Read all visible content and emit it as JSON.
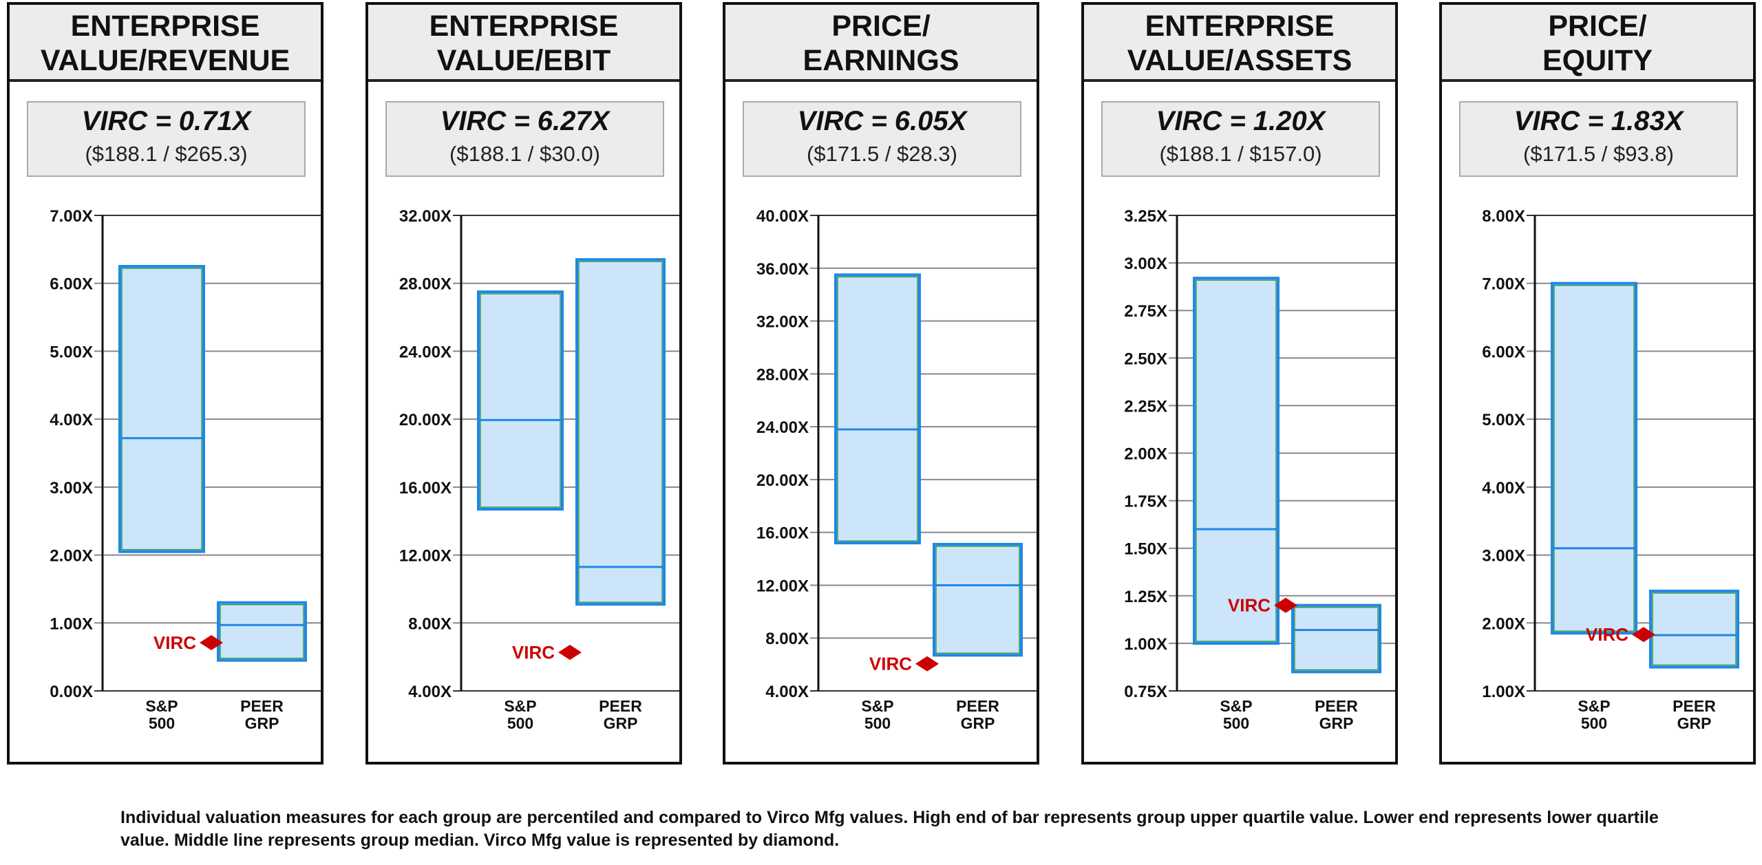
{
  "footnote": "Individual valuation measures for each group are percentiled and compared to Virco Mfg values. High end of bar represents group upper quartile value. Lower end represents lower quartile value. Middle line represents group median. Virco Mfg value is represented by diamond.",
  "colors": {
    "bar_fill": "#cce5fb",
    "bar_border": "#1e88e5",
    "median_line": "#3a9a4a",
    "diamond": "#cc0000",
    "grid": "#888888"
  },
  "chart_data": [
    {
      "type": "box",
      "title_lines": [
        "ENTERPRISE",
        "VALUE/REVENUE"
      ],
      "virc_label": "VIRC = 0.71X",
      "ratio": "($188.1 / $265.3)",
      "ylim": [
        0,
        7
      ],
      "ticks": [
        "0.00X",
        "1.00X",
        "2.00X",
        "3.00X",
        "4.00X",
        "5.00X",
        "6.00X",
        "7.00X"
      ],
      "tick_values": [
        0,
        1,
        2,
        3,
        4,
        5,
        6,
        7
      ],
      "categories": [
        [
          "S&P",
          "500"
        ],
        [
          "PEER",
          "GRP"
        ]
      ],
      "boxes": [
        {
          "low": 2.05,
          "median": 3.72,
          "high": 6.25
        },
        {
          "low": 0.45,
          "median": 0.97,
          "high": 1.3
        }
      ],
      "virc": {
        "label": "VIRC",
        "value": 0.71
      }
    },
    {
      "type": "box",
      "title_lines": [
        "ENTERPRISE",
        "VALUE/EBIT"
      ],
      "virc_label": "VIRC = 6.27X",
      "ratio": "($188.1 / $30.0)",
      "ylim": [
        4,
        32
      ],
      "ticks": [
        "4.00X",
        "8.00X",
        "12.00X",
        "16.00X",
        "20.00X",
        "24.00X",
        "28.00X",
        "32.00X"
      ],
      "tick_values": [
        4,
        8,
        12,
        16,
        20,
        24,
        28,
        32
      ],
      "categories": [
        [
          "S&P",
          "500"
        ],
        [
          "PEER",
          "GRP"
        ]
      ],
      "boxes": [
        {
          "low": 14.7,
          "median": 19.95,
          "high": 27.5
        },
        {
          "low": 9.1,
          "median": 11.3,
          "high": 29.4
        }
      ],
      "virc": {
        "label": "VIRC",
        "value": 6.27
      }
    },
    {
      "type": "box",
      "title_lines": [
        "PRICE/",
        "EARNINGS"
      ],
      "virc_label": "VIRC = 6.05X",
      "ratio": "($171.5 / $28.3)",
      "ylim": [
        4,
        40
      ],
      "ticks": [
        "4.00X",
        "8.00X",
        "12.00X",
        "16.00X",
        "20.00X",
        "24.00X",
        "28.00X",
        "32.00X",
        "36.00X",
        "40.00X"
      ],
      "tick_values": [
        4,
        8,
        12,
        16,
        20,
        24,
        28,
        32,
        36,
        40
      ],
      "categories": [
        [
          "S&P",
          "500"
        ],
        [
          "PEER",
          "GRP"
        ]
      ],
      "boxes": [
        {
          "low": 15.2,
          "median": 23.8,
          "high": 35.5
        },
        {
          "low": 6.7,
          "median": 12.0,
          "high": 15.1
        }
      ],
      "virc": {
        "label": "VIRC",
        "value": 6.05
      }
    },
    {
      "type": "box",
      "title_lines": [
        "ENTERPRISE",
        "VALUE/ASSETS"
      ],
      "virc_label": "VIRC = 1.20X",
      "ratio": "($188.1 / $157.0)",
      "ylim": [
        0.75,
        3.25
      ],
      "ticks": [
        "0.75X",
        "1.00X",
        "1.25X",
        "1.50X",
        "1.75X",
        "2.00X",
        "2.25X",
        "2.50X",
        "2.75X",
        "3.00X",
        "3.25X"
      ],
      "tick_values": [
        0.75,
        1,
        1.25,
        1.5,
        1.75,
        2,
        2.25,
        2.5,
        2.75,
        3,
        3.25
      ],
      "categories": [
        [
          "S&P",
          "500"
        ],
        [
          "PEER",
          "GRP"
        ]
      ],
      "boxes": [
        {
          "low": 1.0,
          "median": 1.6,
          "high": 2.92
        },
        {
          "low": 0.85,
          "median": 1.07,
          "high": 1.2
        }
      ],
      "virc": {
        "label": "VIRC",
        "value": 1.2
      }
    },
    {
      "type": "box",
      "title_lines": [
        "PRICE/",
        "EQUITY"
      ],
      "virc_label": "VIRC = 1.83X",
      "ratio": "($171.5 / $93.8)",
      "ylim": [
        1,
        8
      ],
      "ticks": [
        "1.00X",
        "2.00X",
        "3.00X",
        "4.00X",
        "5.00X",
        "6.00X",
        "7.00X",
        "8.00X"
      ],
      "tick_values": [
        1,
        2,
        3,
        4,
        5,
        6,
        7,
        8
      ],
      "categories": [
        [
          "S&P",
          "500"
        ],
        [
          "PEER",
          "GRP"
        ]
      ],
      "boxes": [
        {
          "low": 1.85,
          "median": 3.1,
          "high": 7.0
        },
        {
          "low": 1.35,
          "median": 1.82,
          "high": 2.47
        }
      ],
      "virc": {
        "label": "VIRC",
        "value": 1.83
      }
    }
  ]
}
